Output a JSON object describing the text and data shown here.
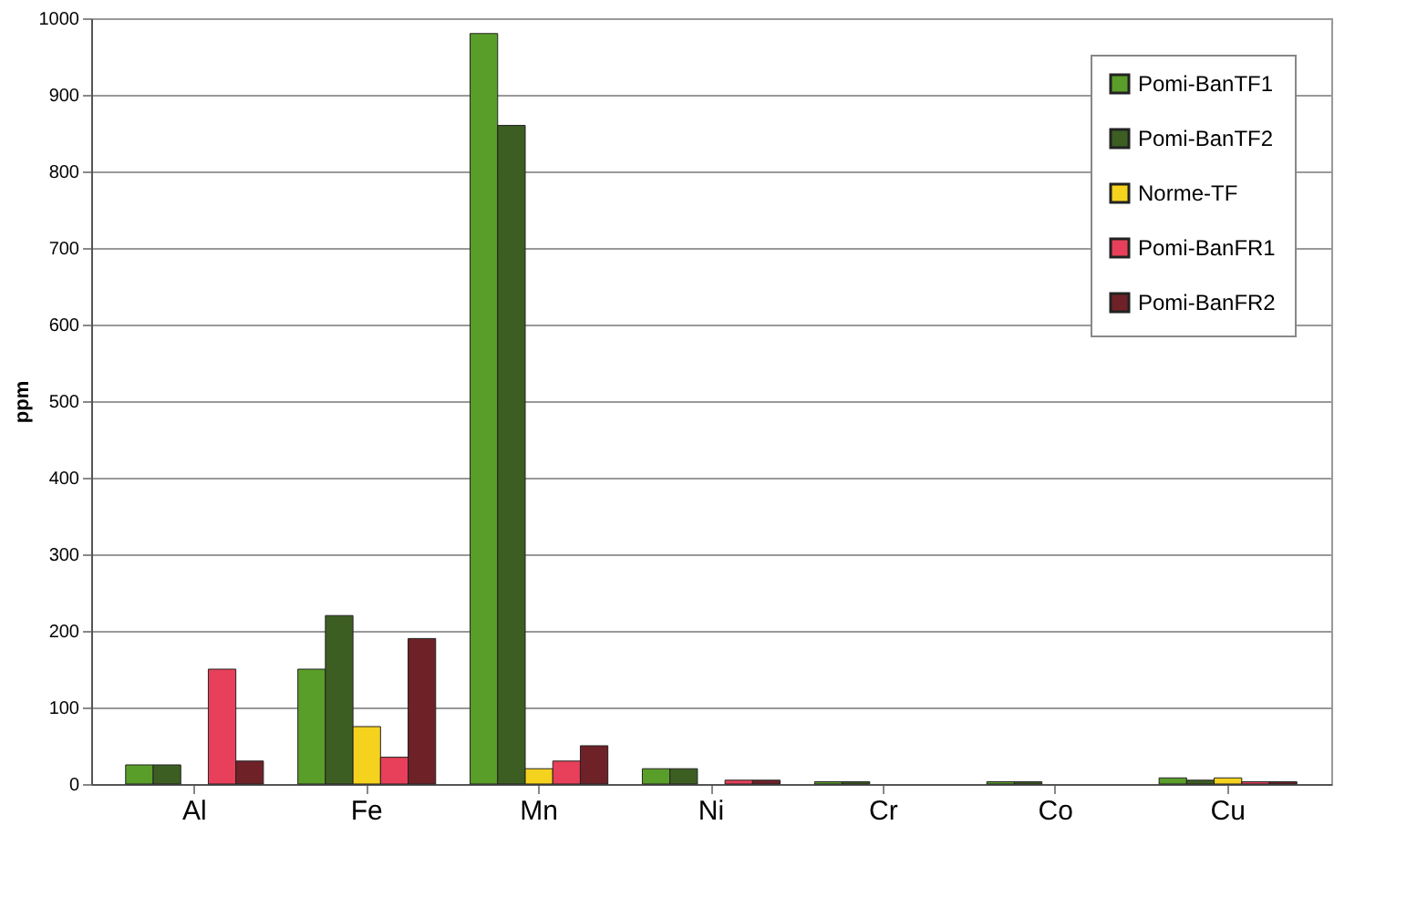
{
  "chart_data": {
    "type": "bar",
    "ylabel": "ppm",
    "categories": [
      "Al",
      "Fe",
      "Mn",
      "Ni",
      "Cr",
      "Co",
      "Cu"
    ],
    "series": [
      {
        "name": "Pomi-BanTF1",
        "color": "#5a9e2a",
        "values": [
          25,
          150,
          980,
          20,
          3,
          3,
          8
        ]
      },
      {
        "name": "Pomi-BanTF2",
        "color": "#3d5e22",
        "values": [
          25,
          220,
          860,
          20,
          3,
          3,
          5
        ]
      },
      {
        "name": "Norme-TF",
        "color": "#f5d21e",
        "values": [
          null,
          75,
          20,
          null,
          null,
          null,
          8
        ]
      },
      {
        "name": "Pomi-BanFR1",
        "color": "#e8405a",
        "values": [
          150,
          35,
          30,
          5,
          null,
          null,
          3
        ]
      },
      {
        "name": "Pomi-BanFR2",
        "color": "#6e2228",
        "values": [
          30,
          190,
          50,
          5,
          null,
          null,
          3
        ]
      }
    ],
    "ylim": [
      0,
      1000
    ],
    "yticks": [
      0,
      100,
      200,
      300,
      400,
      500,
      600,
      700,
      800,
      900,
      1000
    ],
    "grid": "y",
    "legend": "top right"
  }
}
